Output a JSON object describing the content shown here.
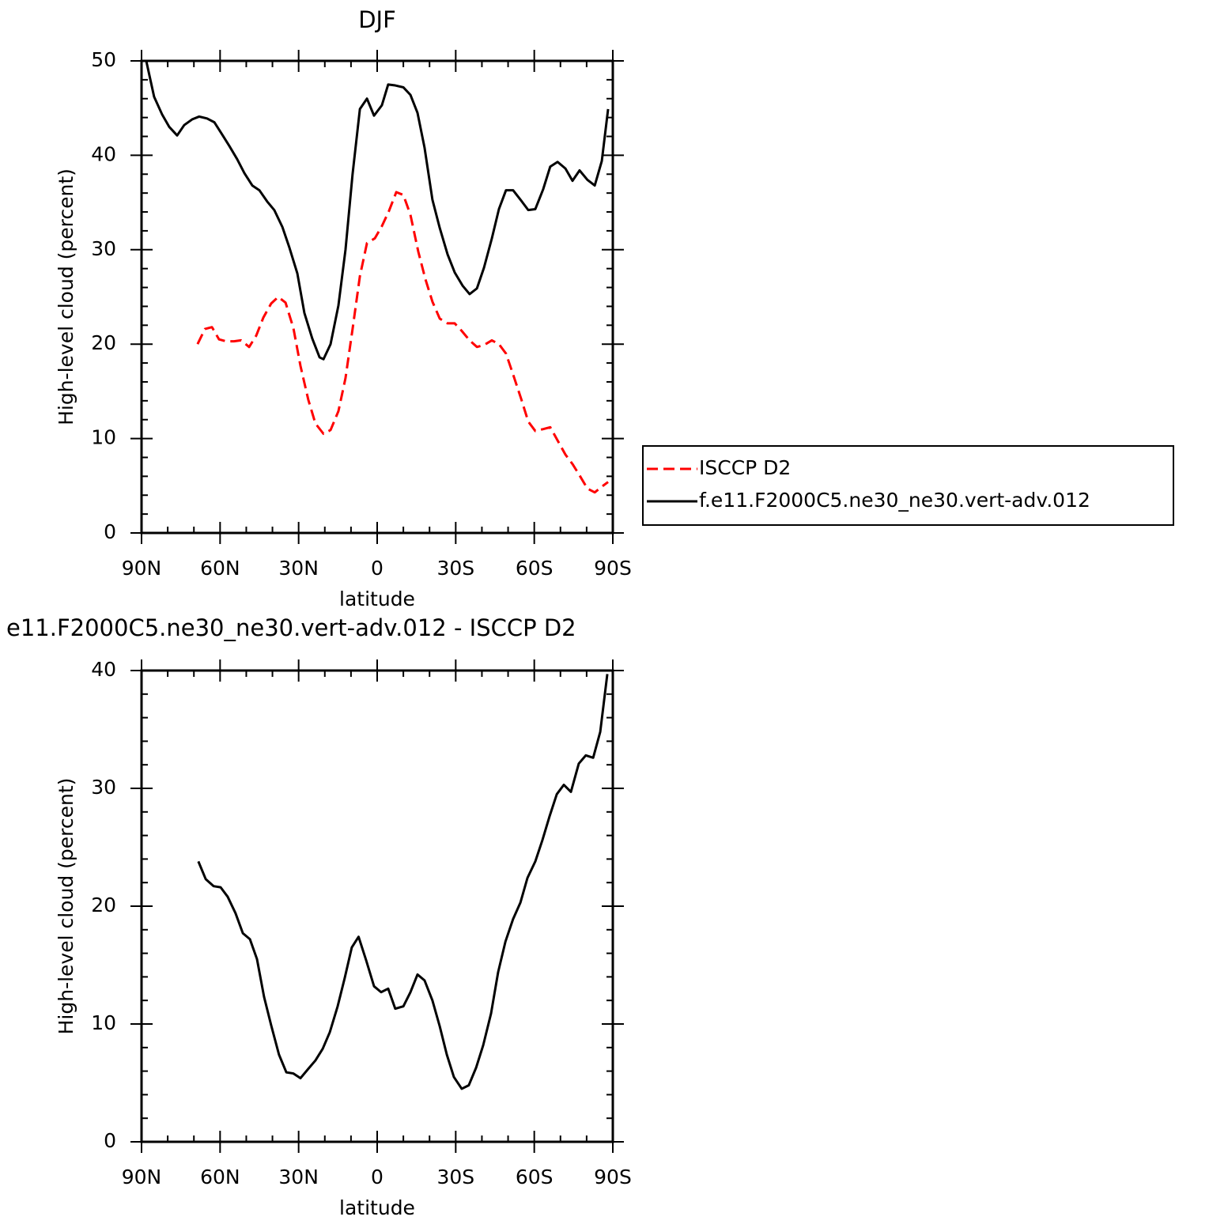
{
  "chart_data": [
    {
      "type": "line",
      "title": "DJF",
      "xlabel": "latitude",
      "ylabel": "High-level cloud (percent)",
      "xlim": [
        90,
        -90
      ],
      "ylim": [
        0,
        50
      ],
      "xticks": [
        {
          "value": 90,
          "label": "90N"
        },
        {
          "value": 60,
          "label": "60N"
        },
        {
          "value": 30,
          "label": "30N"
        },
        0,
        {
          "value": -30,
          "label": "30S"
        },
        {
          "value": -60,
          "label": "60S"
        },
        {
          "value": -90,
          "label": "90S"
        }
      ],
      "yticks": [
        0,
        10,
        20,
        30,
        40,
        50
      ],
      "xminorticks": [
        80,
        70,
        50,
        40,
        20,
        10,
        -10,
        -20,
        -40,
        -50,
        -70,
        -80
      ],
      "yminorticks": [
        2,
        4,
        6,
        8,
        12,
        14,
        16,
        18,
        22,
        24,
        26,
        28,
        32,
        34,
        36,
        38,
        42,
        44,
        46,
        48
      ],
      "legend": "right",
      "series": [
        {
          "name": "ISCCP D2",
          "color": "#ff0000",
          "dash": true,
          "x": [
            68.6,
            65.8,
            63.1,
            60.4,
            57.7,
            54.7,
            52.0,
            48.9,
            46.2,
            43.5,
            40.5,
            37.8,
            35.0,
            32.0,
            29.3,
            26.3,
            23.6,
            20.5,
            17.8,
            14.8,
            12.1,
            9.4,
            6.6,
            3.9,
            0.9,
            -1.8,
            -4.5,
            -7.3,
            -10.0,
            -12.7,
            -15.7,
            -18.4,
            -21.1,
            -23.9,
            -26.9,
            -29.6,
            -32.3,
            -35.3,
            -38.1,
            -40.8,
            -43.8,
            -46.5,
            -49.2,
            -51.9,
            -55.0,
            -57.7,
            -60.4,
            -63.4,
            -66.1,
            -68.9,
            -71.9,
            -74.6,
            -77.3,
            -80.3,
            -83.1,
            -85.8,
            -88.2
          ],
          "values": [
            20.0,
            21.6,
            21.8,
            20.5,
            20.3,
            20.3,
            20.4,
            19.7,
            20.9,
            22.8,
            24.3,
            25.0,
            24.4,
            21.7,
            17.7,
            14.1,
            11.6,
            10.5,
            10.9,
            12.9,
            16.4,
            21.6,
            27.2,
            30.7,
            31.2,
            32.5,
            34.1,
            36.1,
            35.8,
            33.7,
            29.8,
            26.9,
            24.5,
            22.7,
            22.2,
            22.2,
            21.4,
            20.4,
            19.7,
            19.9,
            20.4,
            20.0,
            19.0,
            16.8,
            14.2,
            11.8,
            10.8,
            11.0,
            11.2,
            9.8,
            8.3,
            7.3,
            6.1,
            4.7,
            4.3,
            4.9,
            5.4
          ]
        },
        {
          "name": "f.e11.F2000C5.ne30_ne30.vert-adv.012",
          "color": "#000000",
          "dash": false,
          "x": [
            88.2,
            85.2,
            82.1,
            79.4,
            76.4,
            73.7,
            70.7,
            68.0,
            65.0,
            62.2,
            59.2,
            56.5,
            53.5,
            50.7,
            47.7,
            45.0,
            42.0,
            39.3,
            36.2,
            33.5,
            30.5,
            27.8,
            24.8,
            22.0,
            20.5,
            17.8,
            14.8,
            12.1,
            9.4,
            6.6,
            3.9,
            1.2,
            -1.8,
            -4.2,
            -6.9,
            -10.0,
            -12.7,
            -15.4,
            -18.1,
            -21.1,
            -23.9,
            -26.9,
            -29.6,
            -32.6,
            -35.3,
            -38.1,
            -40.8,
            -43.8,
            -46.5,
            -49.2,
            -51.9,
            -55.0,
            -57.7,
            -60.4,
            -63.4,
            -66.1,
            -68.9,
            -71.9,
            -74.6,
            -77.3,
            -80.3,
            -83.1,
            -85.8,
            -88.2
          ],
          "values": [
            50.0,
            46.2,
            44.3,
            43.0,
            42.1,
            43.2,
            43.8,
            44.1,
            43.9,
            43.5,
            42.2,
            41.0,
            39.6,
            38.1,
            36.8,
            36.3,
            35.1,
            34.2,
            32.4,
            30.2,
            27.5,
            23.3,
            20.6,
            18.6,
            18.4,
            20.0,
            24.1,
            30.0,
            38.0,
            44.9,
            46.0,
            44.2,
            45.3,
            47.5,
            47.4,
            47.2,
            46.4,
            44.5,
            40.8,
            35.3,
            32.3,
            29.5,
            27.6,
            26.2,
            25.3,
            25.9,
            28.1,
            31.2,
            34.3,
            36.3,
            36.3,
            35.2,
            34.2,
            34.3,
            36.4,
            38.8,
            39.3,
            38.6,
            37.3,
            38.4,
            37.4,
            36.8,
            39.4,
            44.9
          ]
        }
      ]
    },
    {
      "type": "line",
      "title": "e11.F2000C5.ne30_ne30.vert-adv.012 - ISCCP D2",
      "xlabel": "latitude",
      "ylabel": "High-level cloud (percent)",
      "xlim": [
        90,
        -90
      ],
      "ylim": [
        0,
        40
      ],
      "xticks": [
        {
          "value": 90,
          "label": "90N"
        },
        {
          "value": 60,
          "label": "60N"
        },
        {
          "value": 30,
          "label": "30N"
        },
        0,
        {
          "value": -30,
          "label": "30S"
        },
        {
          "value": -60,
          "label": "60S"
        },
        {
          "value": -90,
          "label": "90S"
        }
      ],
      "yticks": [
        0,
        10,
        20,
        30,
        40
      ],
      "xminorticks": [
        80,
        70,
        50,
        40,
        20,
        10,
        -10,
        -20,
        -40,
        -50,
        -70,
        -80
      ],
      "yminorticks": [
        2,
        4,
        6,
        8,
        12,
        14,
        16,
        18,
        22,
        24,
        26,
        28,
        32,
        34,
        36,
        38
      ],
      "series": [
        {
          "color": "#000000",
          "dash": false,
          "x": [
            68.3,
            65.5,
            62.5,
            59.8,
            57.1,
            54.1,
            51.3,
            48.6,
            45.9,
            43.2,
            40.5,
            37.5,
            34.7,
            32.0,
            29.3,
            26.3,
            23.6,
            20.8,
            18.1,
            15.1,
            12.4,
            9.7,
            7.1,
            4.2,
            1.2,
            -1.5,
            -4.2,
            -6.9,
            -10.0,
            -12.7,
            -15.4,
            -18.1,
            -21.1,
            -23.9,
            -26.6,
            -29.3,
            -32.3,
            -35.0,
            -37.8,
            -40.5,
            -43.5,
            -46.2,
            -49.0,
            -51.9,
            -54.7,
            -57.4,
            -60.4,
            -63.1,
            -65.8,
            -68.6,
            -71.3,
            -74.0,
            -77.0,
            -79.7,
            -82.5,
            -85.2,
            -87.9
          ],
          "values": [
            23.8,
            22.3,
            21.7,
            21.6,
            20.8,
            19.4,
            17.7,
            17.2,
            15.5,
            12.3,
            9.9,
            7.4,
            5.9,
            5.8,
            5.4,
            6.2,
            6.9,
            7.9,
            9.3,
            11.5,
            13.9,
            16.5,
            17.4,
            15.4,
            13.2,
            12.7,
            13.0,
            11.3,
            11.5,
            12.7,
            14.2,
            13.7,
            12.0,
            9.8,
            7.4,
            5.5,
            4.5,
            4.8,
            6.3,
            8.2,
            10.9,
            14.4,
            17.0,
            18.9,
            20.3,
            22.4,
            23.8,
            25.6,
            27.6,
            29.5,
            30.3,
            29.7,
            32.1,
            32.8,
            32.6,
            34.8,
            39.7
          ]
        }
      ]
    }
  ]
}
